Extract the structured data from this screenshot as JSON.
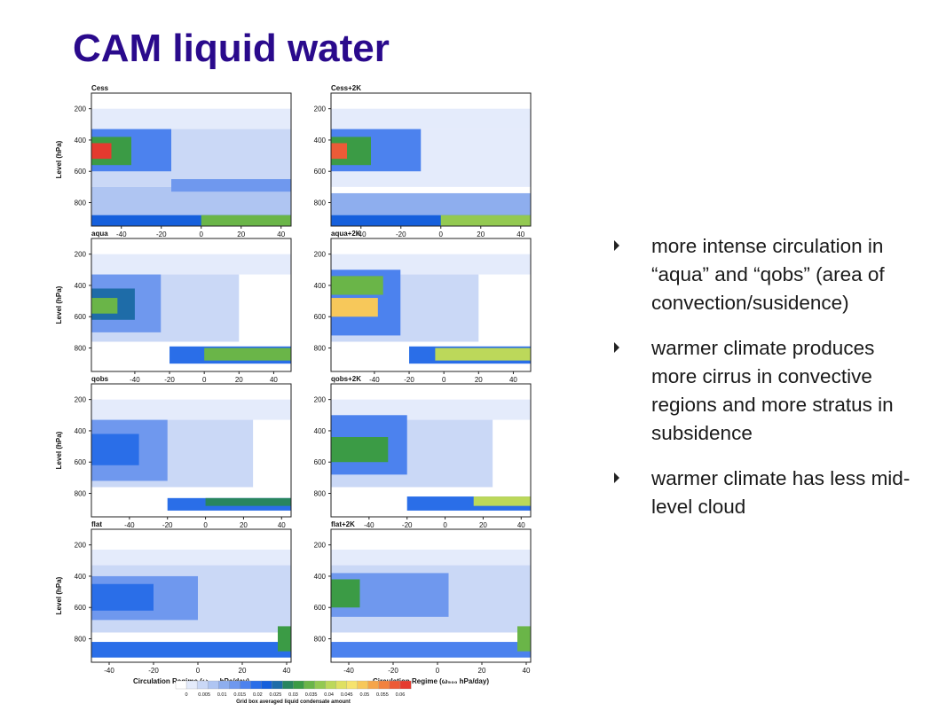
{
  "slide": {
    "title": "CAM liquid water",
    "bullets": [
      "more intense circulation in “aqua” and “qobs” (area of convection/susidence)",
      "warmer climate produces more cirrus in convective regions and more stratus in subsidence",
      "warmer climate has less mid-level cloud"
    ]
  },
  "chart_data": {
    "type": "heatmap",
    "ylabel": "Level (hPa)",
    "xlabel": "Circulation Regime (ω₅₀₀ hPa/day)",
    "yticks": [
      200,
      400,
      600,
      800
    ],
    "ylim": [
      100,
      950
    ],
    "colorbar": {
      "label": "Grid box averaged liquid condensate amount",
      "ticks": [
        "0",
        "0.005",
        "0.01",
        "0.015",
        "0.02",
        "0.025",
        "0.03",
        "0.035",
        "0.04",
        "0.045",
        "0.05",
        "0.055",
        "0.06"
      ],
      "colors": [
        "#ffffff",
        "#e4ebfb",
        "#cad8f6",
        "#afc5f2",
        "#8eaeee",
        "#6f98ee",
        "#4c82ee",
        "#2a6ee8",
        "#155fdc",
        "#1e6ca8",
        "#28855f",
        "#3b9b45",
        "#6ab548",
        "#93c951",
        "#bcd85a",
        "#dfe062",
        "#f6e36e",
        "#f7c85a",
        "#f5a54a",
        "#f2823f",
        "#ec5b37",
        "#e53a2f"
      ]
    },
    "panels": [
      {
        "name": "Cess",
        "xlim": [
          -55,
          45
        ],
        "xticks": [
          -40,
          -20,
          0,
          20,
          40
        ],
        "blobs": [
          {
            "x0": -55,
            "x1": 45,
            "y0": 200,
            "y1": 330,
            "v": 0.003
          },
          {
            "x0": -55,
            "x1": 45,
            "y0": 330,
            "y1": 700,
            "v": 0.005
          },
          {
            "x0": -55,
            "x1": 45,
            "y0": 700,
            "y1": 880,
            "v": 0.009
          },
          {
            "x0": -55,
            "x1": -15,
            "y0": 330,
            "y1": 600,
            "v": 0.018
          },
          {
            "x0": -55,
            "x1": -35,
            "y0": 380,
            "y1": 560,
            "v": 0.03
          },
          {
            "x0": -55,
            "x1": -45,
            "y0": 420,
            "y1": 520,
            "v": 0.06
          },
          {
            "x0": -15,
            "x1": 45,
            "y0": 650,
            "y1": 730,
            "v": 0.015
          },
          {
            "x0": -55,
            "x1": 45,
            "y0": 880,
            "y1": 950,
            "v": 0.022
          },
          {
            "x0": 0,
            "x1": 45,
            "y0": 880,
            "y1": 950,
            "v": 0.035
          }
        ]
      },
      {
        "name": "Cess+2K",
        "xlim": [
          -55,
          45
        ],
        "xticks": [
          -40,
          -20,
          0,
          20,
          40
        ],
        "blobs": [
          {
            "x0": -55,
            "x1": 45,
            "y0": 200,
            "y1": 330,
            "v": 0.003
          },
          {
            "x0": -55,
            "x1": 45,
            "y0": 330,
            "y1": 700,
            "v": 0.004
          },
          {
            "x0": -55,
            "x1": 45,
            "y0": 740,
            "y1": 880,
            "v": 0.012
          },
          {
            "x0": -55,
            "x1": -10,
            "y0": 330,
            "y1": 600,
            "v": 0.016
          },
          {
            "x0": -55,
            "x1": -35,
            "y0": 380,
            "y1": 560,
            "v": 0.03
          },
          {
            "x0": -55,
            "x1": -47,
            "y0": 420,
            "y1": 520,
            "v": 0.058
          },
          {
            "x0": -55,
            "x1": 45,
            "y0": 880,
            "y1": 950,
            "v": 0.022
          },
          {
            "x0": 0,
            "x1": 45,
            "y0": 880,
            "y1": 950,
            "v": 0.036
          }
        ]
      },
      {
        "name": "aqua",
        "xlim": [
          -65,
          50
        ],
        "xticks": [
          -40,
          -20,
          0,
          20,
          40
        ],
        "blobs": [
          {
            "x0": -65,
            "x1": 50,
            "y0": 200,
            "y1": 330,
            "v": 0.003
          },
          {
            "x0": -65,
            "x1": 20,
            "y0": 330,
            "y1": 760,
            "v": 0.005
          },
          {
            "x0": -65,
            "x1": -25,
            "y0": 330,
            "y1": 700,
            "v": 0.013
          },
          {
            "x0": -65,
            "x1": -40,
            "y0": 420,
            "y1": 620,
            "v": 0.025
          },
          {
            "x0": -65,
            "x1": -50,
            "y0": 480,
            "y1": 580,
            "v": 0.033
          },
          {
            "x0": -20,
            "x1": 50,
            "y0": 790,
            "y1": 900,
            "v": 0.02
          },
          {
            "x0": 0,
            "x1": 50,
            "y0": 800,
            "y1": 880,
            "v": 0.035
          }
        ]
      },
      {
        "name": "aqua+2K",
        "xlim": [
          -65,
          50
        ],
        "xticks": [
          -40,
          -20,
          0,
          20,
          40
        ],
        "blobs": [
          {
            "x0": -65,
            "x1": 50,
            "y0": 200,
            "y1": 330,
            "v": 0.003
          },
          {
            "x0": -65,
            "x1": 20,
            "y0": 330,
            "y1": 760,
            "v": 0.005
          },
          {
            "x0": -65,
            "x1": -25,
            "y0": 300,
            "y1": 720,
            "v": 0.016
          },
          {
            "x0": -65,
            "x1": -35,
            "y0": 340,
            "y1": 460,
            "v": 0.035
          },
          {
            "x0": -65,
            "x1": -38,
            "y0": 480,
            "y1": 600,
            "v": 0.048
          },
          {
            "x0": -20,
            "x1": 50,
            "y0": 790,
            "y1": 900,
            "v": 0.02
          },
          {
            "x0": -5,
            "x1": 50,
            "y0": 800,
            "y1": 880,
            "v": 0.04
          }
        ]
      },
      {
        "name": "qobs",
        "xlim": [
          -60,
          45
        ],
        "xticks": [
          -40,
          -20,
          0,
          20,
          40
        ],
        "blobs": [
          {
            "x0": -60,
            "x1": 45,
            "y0": 200,
            "y1": 330,
            "v": 0.003
          },
          {
            "x0": -60,
            "x1": 25,
            "y0": 330,
            "y1": 760,
            "v": 0.005
          },
          {
            "x0": -60,
            "x1": -20,
            "y0": 330,
            "y1": 720,
            "v": 0.014
          },
          {
            "x0": -60,
            "x1": -35,
            "y0": 420,
            "y1": 620,
            "v": 0.02
          },
          {
            "x0": -20,
            "x1": 45,
            "y0": 830,
            "y1": 910,
            "v": 0.02
          },
          {
            "x0": 0,
            "x1": 45,
            "y0": 830,
            "y1": 880,
            "v": 0.028
          }
        ]
      },
      {
        "name": "qobs+2K",
        "xlim": [
          -60,
          45
        ],
        "xticks": [
          -40,
          -20,
          0,
          20,
          40
        ],
        "blobs": [
          {
            "x0": -60,
            "x1": 45,
            "y0": 200,
            "y1": 330,
            "v": 0.003
          },
          {
            "x0": -60,
            "x1": 25,
            "y0": 330,
            "y1": 760,
            "v": 0.005
          },
          {
            "x0": -60,
            "x1": -20,
            "y0": 300,
            "y1": 680,
            "v": 0.016
          },
          {
            "x0": -60,
            "x1": -30,
            "y0": 440,
            "y1": 600,
            "v": 0.03
          },
          {
            "x0": -20,
            "x1": 45,
            "y0": 820,
            "y1": 910,
            "v": 0.02
          },
          {
            "x0": 15,
            "x1": 45,
            "y0": 820,
            "y1": 880,
            "v": 0.04
          }
        ]
      },
      {
        "name": "flat",
        "xlim": [
          -48,
          42
        ],
        "xticks": [
          -40,
          -20,
          0,
          20,
          40
        ],
        "blobs": [
          {
            "x0": -48,
            "x1": 42,
            "y0": 230,
            "y1": 330,
            "v": 0.003
          },
          {
            "x0": -48,
            "x1": 42,
            "y0": 330,
            "y1": 760,
            "v": 0.005
          },
          {
            "x0": -48,
            "x1": 0,
            "y0": 400,
            "y1": 680,
            "v": 0.013
          },
          {
            "x0": -48,
            "x1": -20,
            "y0": 450,
            "y1": 620,
            "v": 0.02
          },
          {
            "x0": -48,
            "x1": 42,
            "y0": 820,
            "y1": 920,
            "v": 0.02
          },
          {
            "x0": 36,
            "x1": 42,
            "y0": 720,
            "y1": 880,
            "v": 0.03
          }
        ]
      },
      {
        "name": "flat+2K",
        "xlim": [
          -48,
          42
        ],
        "xticks": [
          -40,
          -20,
          0,
          20,
          40
        ],
        "blobs": [
          {
            "x0": -48,
            "x1": 42,
            "y0": 230,
            "y1": 330,
            "v": 0.003
          },
          {
            "x0": -48,
            "x1": 42,
            "y0": 330,
            "y1": 760,
            "v": 0.005
          },
          {
            "x0": -48,
            "x1": 5,
            "y0": 380,
            "y1": 660,
            "v": 0.014
          },
          {
            "x0": -48,
            "x1": -35,
            "y0": 420,
            "y1": 600,
            "v": 0.03
          },
          {
            "x0": -48,
            "x1": 42,
            "y0": 820,
            "y1": 920,
            "v": 0.018
          },
          {
            "x0": 36,
            "x1": 42,
            "y0": 720,
            "y1": 880,
            "v": 0.035
          }
        ]
      }
    ]
  }
}
